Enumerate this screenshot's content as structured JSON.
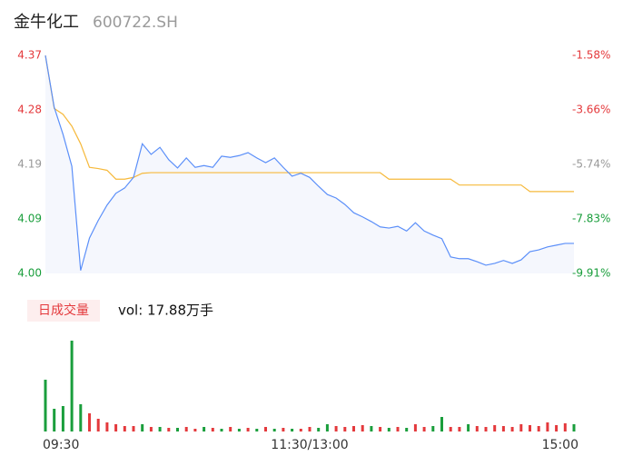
{
  "chart_data": [
    {
      "type": "line",
      "title": "金牛化工",
      "subtitle": "600722.SH",
      "x": [
        0,
        4,
        8,
        12,
        16,
        20,
        24,
        28,
        32,
        36,
        40,
        44,
        48,
        52,
        56,
        60,
        64,
        68,
        72,
        76,
        80,
        84,
        88,
        92,
        96,
        100,
        104,
        108,
        112,
        116,
        120,
        124,
        128,
        132,
        136,
        140,
        144,
        148,
        152,
        156,
        160,
        164,
        168,
        172,
        176,
        180,
        184,
        188,
        192,
        196,
        200,
        204,
        208,
        212,
        216,
        220,
        224,
        228,
        232,
        236,
        240
      ],
      "xlim": [
        0,
        240
      ],
      "values": [
        4.37,
        4.282,
        4.236,
        4.182,
        4.005,
        4.06,
        4.09,
        4.116,
        4.136,
        4.145,
        4.163,
        4.22,
        4.202,
        4.214,
        4.193,
        4.179,
        4.196,
        4.18,
        4.183,
        4.18,
        4.199,
        4.197,
        4.2,
        4.205,
        4.196,
        4.188,
        4.196,
        4.18,
        4.165,
        4.17,
        4.163,
        4.148,
        4.134,
        4.128,
        4.117,
        4.103,
        4.096,
        4.088,
        4.079,
        4.077,
        4.08,
        4.072,
        4.086,
        4.072,
        4.065,
        4.059,
        4.028,
        4.025,
        4.025,
        4.02,
        4.014,
        4.017,
        4.022,
        4.017,
        4.023,
        4.037,
        4.04,
        4.045,
        4.048,
        4.051,
        4.051
      ],
      "color": "#5b8ff9",
      "area_color": "#f5f7fd",
      "average": [
        4.37,
        4.28,
        4.27,
        4.25,
        4.22,
        4.18,
        4.178,
        4.175,
        4.16,
        4.16,
        4.163,
        4.17,
        4.171,
        4.171,
        4.171,
        4.171,
        4.171,
        4.171,
        4.171,
        4.171,
        4.171,
        4.171,
        4.171,
        4.171,
        4.171,
        4.171,
        4.171,
        4.171,
        4.171,
        4.171,
        4.171,
        4.171,
        4.171,
        4.171,
        4.171,
        4.171,
        4.171,
        4.171,
        4.171,
        4.16,
        4.16,
        4.16,
        4.16,
        4.16,
        4.16,
        4.16,
        4.16,
        4.15,
        4.15,
        4.15,
        4.15,
        4.15,
        4.15,
        4.15,
        4.15,
        4.139,
        4.139,
        4.139,
        4.139,
        4.139,
        4.139
      ],
      "average_color": "#f6b93b",
      "ylim": [
        4.0,
        4.37
      ],
      "yticks": [
        {
          "value": 4.37,
          "label": "4.37"
        },
        {
          "value": 4.2775,
          "label": "4.28"
        },
        {
          "value": 4.185,
          "label": "4.19"
        },
        {
          "value": 4.0925,
          "label": "4.09"
        },
        {
          "value": 4.0,
          "label": "4.00"
        }
      ],
      "ytick_colors": [
        "#e4393c",
        "#e4393c",
        "#999999",
        "#1a9e3c",
        "#1a9e3c"
      ],
      "y2lim": [
        -9.91,
        -1.58
      ],
      "y2ticks": [
        {
          "value": -1.58,
          "label": "-1.58%"
        },
        {
          "value": -3.66,
          "label": "-3.66%"
        },
        {
          "value": -5.74,
          "label": "-5.74%"
        },
        {
          "value": -7.83,
          "label": "-7.83%"
        },
        {
          "value": -9.91,
          "label": "-9.91%"
        }
      ],
      "grid": false
    },
    {
      "type": "bar",
      "title": "日成交量",
      "subtitle": "vol: 17.88万手",
      "x": [
        0,
        4,
        8,
        12,
        16,
        20,
        24,
        28,
        32,
        36,
        40,
        44,
        48,
        52,
        56,
        60,
        64,
        68,
        72,
        76,
        80,
        84,
        88,
        92,
        96,
        100,
        104,
        108,
        112,
        116,
        120,
        124,
        128,
        132,
        136,
        140,
        144,
        148,
        152,
        156,
        160,
        164,
        168,
        172,
        176,
        180,
        184,
        188,
        192,
        196,
        200,
        204,
        208,
        212,
        216,
        220,
        224,
        228,
        232,
        236,
        240
      ],
      "xlim": [
        0,
        240
      ],
      "xticks": [
        {
          "value": 0,
          "label": "09:30"
        },
        {
          "value": 120,
          "label": "11:30/13:00"
        },
        {
          "value": 240,
          "label": "15:00"
        }
      ],
      "values": [
        57,
        25,
        28,
        100,
        30,
        20,
        14,
        10,
        8,
        6,
        6,
        8,
        5,
        5,
        4,
        4,
        5,
        3,
        5,
        4,
        3,
        5,
        3,
        4,
        3,
        5,
        3,
        4,
        3,
        3,
        5,
        4,
        8,
        6,
        5,
        6,
        7,
        6,
        5,
        4,
        5,
        4,
        8,
        5,
        6,
        16,
        5,
        5,
        8,
        6,
        5,
        7,
        6,
        5,
        8,
        7,
        6,
        10,
        7,
        9,
        8
      ],
      "colors": [
        "#1a9e3c",
        "#1a9e3c",
        "#1a9e3c",
        "#1a9e3c",
        "#1a9e3c",
        "#e4393c",
        "#e4393c",
        "#e4393c",
        "#e4393c",
        "#e4393c",
        "#e4393c",
        "#1a9e3c",
        "#e4393c",
        "#1a9e3c",
        "#e4393c",
        "#1a9e3c",
        "#e4393c",
        "#e4393c",
        "#1a9e3c",
        "#e4393c",
        "#1a9e3c",
        "#e4393c",
        "#1a9e3c",
        "#e4393c",
        "#1a9e3c",
        "#e4393c",
        "#1a9e3c",
        "#e4393c",
        "#1a9e3c",
        "#e4393c",
        "#e4393c",
        "#1a9e3c",
        "#1a9e3c",
        "#e4393c",
        "#e4393c",
        "#e4393c",
        "#e4393c",
        "#1a9e3c",
        "#e4393c",
        "#1a9e3c",
        "#e4393c",
        "#1a9e3c",
        "#e4393c",
        "#e4393c",
        "#1a9e3c",
        "#1a9e3c",
        "#e4393c",
        "#e4393c",
        "#1a9e3c",
        "#e4393c",
        "#e4393c",
        "#e4393c",
        "#e4393c",
        "#e4393c",
        "#e4393c",
        "#e4393c",
        "#e4393c",
        "#e4393c",
        "#e4393c",
        "#e4393c",
        "#1a9e3c"
      ],
      "ylim": [
        0,
        105
      ]
    }
  ]
}
